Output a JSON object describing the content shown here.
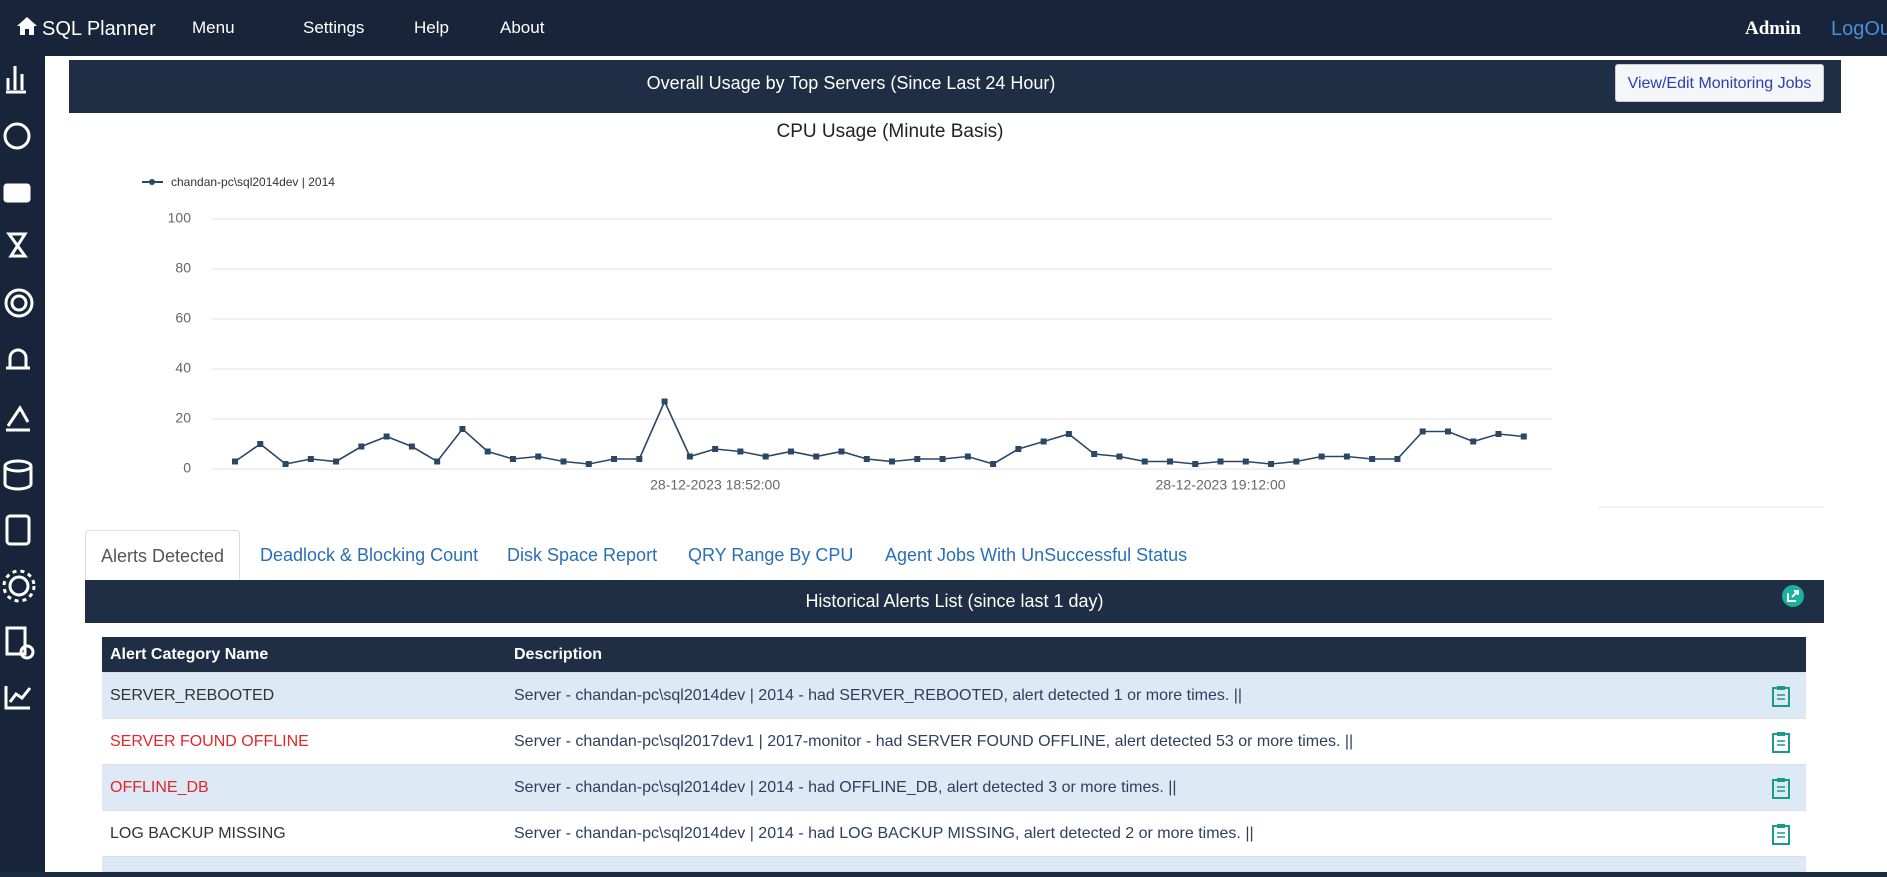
{
  "nav": {
    "brand": "SQL Planner",
    "items": [
      "Menu",
      "Settings",
      "Help",
      "About"
    ],
    "user": "Admin",
    "logout": "LogOut"
  },
  "header": {
    "title": "Overall Usage by Top Servers (Since Last 24 Hour)",
    "button": "View/Edit Monitoring Jobs"
  },
  "chart_data": {
    "type": "line",
    "title": "CPU Usage (Minute Basis)",
    "categories": [
      null,
      null,
      null,
      null,
      null,
      null,
      null,
      null,
      null,
      null,
      null,
      null,
      null,
      null,
      null,
      null,
      null,
      null,
      null,
      "28-12-2023 18:52:00",
      null,
      null,
      null,
      null,
      null,
      null,
      null,
      null,
      null,
      null,
      null,
      null,
      null,
      null,
      null,
      null,
      null,
      null,
      null,
      "28-12-2023 19:12:00",
      null,
      null,
      null,
      null,
      null,
      null,
      null,
      null,
      null,
      null,
      null,
      null
    ],
    "series": [
      {
        "name": "chandan-pc\\sql2014dev | 2014",
        "color": "#2b4766",
        "values": [
          3,
          10,
          2,
          4,
          3,
          9,
          13,
          9,
          3,
          16,
          7,
          4,
          5,
          3,
          2,
          4,
          4,
          27,
          5,
          8,
          7,
          5,
          7,
          5,
          7,
          4,
          3,
          4,
          4,
          5,
          2,
          8,
          11,
          14,
          6,
          5,
          3,
          3,
          2,
          3,
          3,
          2,
          3,
          5,
          5,
          4,
          4,
          15,
          15,
          11,
          14,
          13
        ]
      }
    ],
    "ylim": [
      0,
      100
    ],
    "yticks": [
      0,
      20,
      40,
      60,
      80,
      100
    ],
    "grid": true
  },
  "tabs": [
    "Alerts Detected",
    "Deadlock & Blocking Count",
    "Disk Space Report",
    "QRY Range By CPU",
    "Agent Jobs With UnSuccessful Status"
  ],
  "alerts": {
    "title": "Historical Alerts List (since last 1 day)",
    "headers": [
      "Alert Category Name",
      "Description"
    ],
    "rows": [
      [
        "SERVER_REBOOTED",
        "Server - chandan-pc\\sql2014dev | 2014 - had SERVER_REBOOTED, alert detected 1 or more times. ||"
      ],
      [
        "SERVER FOUND OFFLINE",
        "Server - chandan-pc\\sql2017dev1 | 2017-monitor - had SERVER FOUND OFFLINE, alert detected 53 or more times. ||"
      ],
      [
        "OFFLINE_DB",
        "Server - chandan-pc\\sql2014dev | 2014 - had OFFLINE_DB, alert detected 3 or more times. ||"
      ],
      [
        "LOG BACKUP MISSING",
        "Server - chandan-pc\\sql2014dev | 2014 - had LOG BACKUP MISSING, alert detected 2 or more times. ||"
      ]
    ]
  }
}
